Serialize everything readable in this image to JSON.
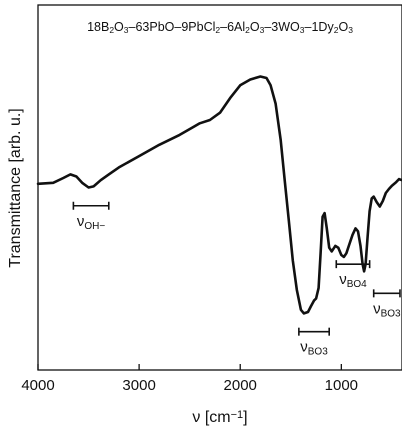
{
  "chart_data": {
    "type": "line",
    "title": "18B2O3–63PbO–9PbCl2–6Al2O3–3WO3–1Dy2O3",
    "title_parts": [
      {
        "t": "18B"
      },
      {
        "t": "2",
        "sub": true
      },
      {
        "t": "O"
      },
      {
        "t": "3",
        "sub": true
      },
      {
        "t": "–63PbO–9PbCl"
      },
      {
        "t": "2",
        "sub": true
      },
      {
        "t": "–6Al"
      },
      {
        "t": "2",
        "sub": true
      },
      {
        "t": "O"
      },
      {
        "t": "3",
        "sub": true
      },
      {
        "t": "–3WO"
      },
      {
        "t": "3",
        "sub": true
      },
      {
        "t": "–1Dy"
      },
      {
        "t": "2",
        "sub": true
      },
      {
        "t": "O"
      },
      {
        "t": "3",
        "sub": true
      }
    ],
    "xlabel": "ν [cm−1]",
    "xlabel_parts": [
      {
        "t": "ν [cm"
      },
      {
        "t": "−1",
        "sup": true
      },
      {
        "t": "]"
      }
    ],
    "ylabel": "Transmittance [arb. u.]",
    "xlim": [
      4000,
      400
    ],
    "ylim": [
      0,
      100
    ],
    "x_ticks": [
      4000,
      3000,
      2000,
      1000
    ],
    "x_tick_labels": [
      "4000",
      "3000",
      "2000",
      "1000"
    ],
    "y_ticks_labeled": false,
    "grid": false,
    "series": [
      {
        "color": "#111111",
        "points": [
          [
            4000,
            51.0
          ],
          [
            3850,
            51.3
          ],
          [
            3750,
            52.6
          ],
          [
            3680,
            53.6
          ],
          [
            3620,
            53.0
          ],
          [
            3560,
            51.2
          ],
          [
            3500,
            50.0
          ],
          [
            3450,
            50.3
          ],
          [
            3380,
            52.0
          ],
          [
            3300,
            53.6
          ],
          [
            3200,
            55.5
          ],
          [
            3000,
            58.6
          ],
          [
            2800,
            61.7
          ],
          [
            2600,
            64.4
          ],
          [
            2400,
            67.6
          ],
          [
            2300,
            68.5
          ],
          [
            2200,
            70.5
          ],
          [
            2100,
            74.5
          ],
          [
            2000,
            78.0
          ],
          [
            1900,
            79.6
          ],
          [
            1800,
            80.4
          ],
          [
            1740,
            80.0
          ],
          [
            1700,
            78.0
          ],
          [
            1650,
            73.0
          ],
          [
            1600,
            63.0
          ],
          [
            1560,
            52.0
          ],
          [
            1520,
            41.0
          ],
          [
            1480,
            30.0
          ],
          [
            1440,
            22.0
          ],
          [
            1400,
            16.5
          ],
          [
            1370,
            15.5
          ],
          [
            1330,
            15.9
          ],
          [
            1300,
            17.5
          ],
          [
            1270,
            19.0
          ],
          [
            1250,
            19.6
          ],
          [
            1225,
            22.5
          ],
          [
            1205,
            32.0
          ],
          [
            1185,
            42.0
          ],
          [
            1165,
            43.0
          ],
          [
            1145,
            39.0
          ],
          [
            1120,
            33.5
          ],
          [
            1095,
            32.5
          ],
          [
            1060,
            34.0
          ],
          [
            1030,
            33.5
          ],
          [
            1000,
            31.5
          ],
          [
            975,
            31.0
          ],
          [
            950,
            32.0
          ],
          [
            920,
            34.5
          ],
          [
            890,
            37.0
          ],
          [
            860,
            38.8
          ],
          [
            835,
            38.0
          ],
          [
            810,
            34.0
          ],
          [
            790,
            29.0
          ],
          [
            775,
            27.0
          ],
          [
            760,
            29.0
          ],
          [
            740,
            36.5
          ],
          [
            720,
            43.5
          ],
          [
            700,
            47.0
          ],
          [
            680,
            47.5
          ],
          [
            650,
            46.0
          ],
          [
            620,
            44.8
          ],
          [
            590,
            46.3
          ],
          [
            560,
            48.5
          ],
          [
            530,
            49.6
          ],
          [
            500,
            50.5
          ],
          [
            460,
            51.4
          ],
          [
            430,
            52.3
          ],
          [
            400,
            52.0
          ]
        ]
      }
    ],
    "annotations": [
      {
        "label": "νOH−",
        "main": "ν",
        "sub": "OH−",
        "range": [
          3650,
          3300
        ],
        "bar_y": 45.0
      },
      {
        "label": "νBO4",
        "main": "ν",
        "sub": "BO4",
        "range": [
          1050,
          720
        ],
        "bar_y": 29.0
      },
      {
        "label": "νBO3",
        "main": "ν",
        "sub": "BO3",
        "range": [
          680,
          420
        ],
        "bar_y": 21.0
      },
      {
        "label": "νBO3",
        "main": "ν",
        "sub": "BO3",
        "range": [
          1420,
          1120
        ],
        "bar_y": 10.5
      }
    ]
  }
}
